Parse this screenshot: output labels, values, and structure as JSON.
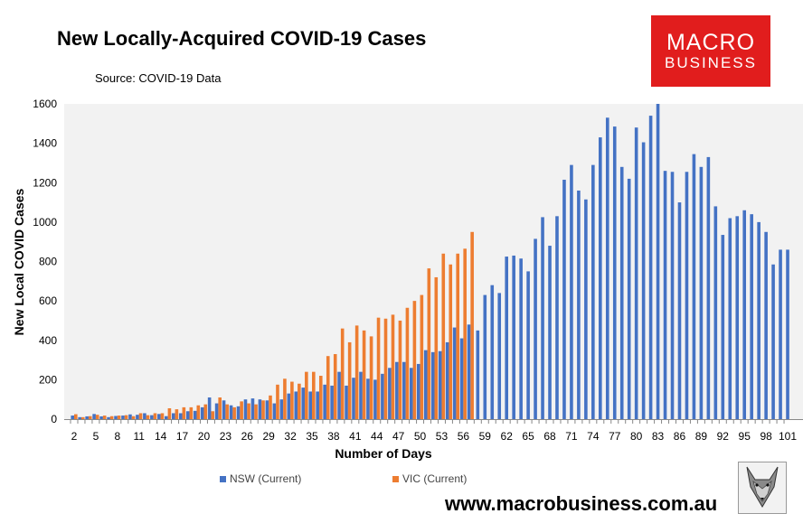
{
  "title": "New Locally-Acquired COVID-19 Cases",
  "source": "Source: COVID-19 Data",
  "logo": {
    "line1": "MACRO",
    "line2": "BUSINESS"
  },
  "website": "www.macrobusiness.com.au",
  "colors": {
    "nsw": "#4472c4",
    "vic": "#ed7d31",
    "brand": "#e11d1d"
  },
  "chart_data": {
    "type": "bar",
    "xlabel": "Number of Days",
    "ylabel": "New Local COVID Cases",
    "ylim": [
      0,
      1600
    ],
    "yticks": [
      0,
      200,
      400,
      600,
      800,
      1000,
      1200,
      1400,
      1600
    ],
    "xlim": [
      2,
      101
    ],
    "xticks": [
      2,
      5,
      8,
      11,
      14,
      17,
      20,
      23,
      26,
      29,
      32,
      35,
      38,
      41,
      44,
      47,
      50,
      53,
      56,
      59,
      62,
      65,
      68,
      71,
      74,
      77,
      80,
      83,
      86,
      89,
      92,
      95,
      98,
      101
    ],
    "legend_position": "bottom",
    "series": [
      {
        "name": "NSW (Current)",
        "start_day": 2,
        "values": [
          18,
          10,
          14,
          26,
          14,
          10,
          16,
          18,
          24,
          22,
          30,
          20,
          26,
          15,
          30,
          30,
          40,
          42,
          60,
          110,
          80,
          95,
          70,
          65,
          100,
          105,
          100,
          95,
          80,
          100,
          130,
          140,
          160,
          140,
          140,
          175,
          170,
          240,
          170,
          210,
          240,
          205,
          200,
          230,
          260,
          290,
          290,
          260,
          280,
          350,
          340,
          345,
          390,
          465,
          410,
          480,
          450,
          630,
          680,
          640,
          825,
          830,
          815,
          750,
          915,
          1025,
          880,
          1030,
          1215,
          1290,
          1160,
          1115,
          1290,
          1430,
          1530,
          1485,
          1280,
          1220,
          1480,
          1405,
          1540,
          1600,
          1260,
          1255,
          1100,
          1255,
          1345,
          1280,
          1330,
          1080,
          935,
          1020,
          1030,
          1060,
          1040,
          1000,
          950,
          785,
          860,
          860
        ]
      },
      {
        "name": "VIC (Current)",
        "start_day": 2,
        "values": [
          25,
          10,
          15,
          22,
          18,
          15,
          18,
          20,
          15,
          30,
          20,
          30,
          30,
          55,
          50,
          60,
          60,
          70,
          75,
          40,
          110,
          75,
          60,
          90,
          80,
          75,
          95,
          120,
          175,
          205,
          190,
          180,
          240,
          240,
          220,
          320,
          330,
          460,
          390,
          475,
          450,
          420,
          515,
          510,
          530,
          500,
          565,
          600,
          630,
          765,
          720,
          840,
          785,
          840,
          865,
          950
        ]
      }
    ]
  }
}
